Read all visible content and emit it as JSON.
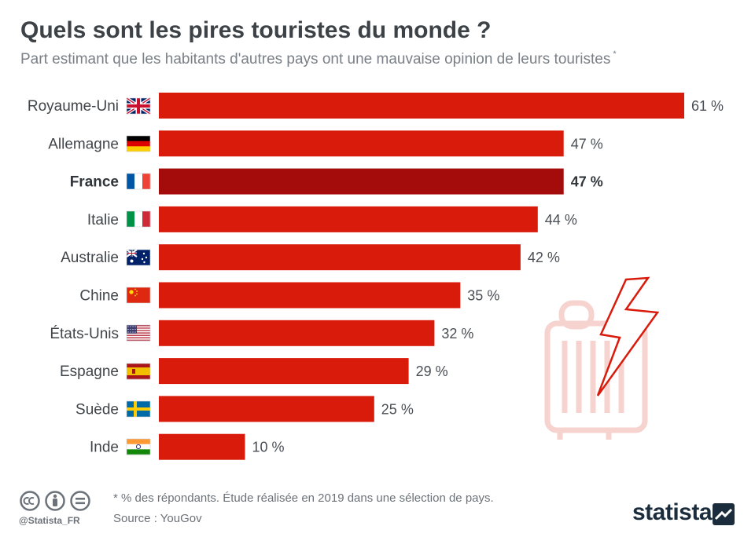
{
  "title": "Quels sont les pires touristes du monde ?",
  "subtitle": "Part estimant que les habitants d'autres pays ont une mauvaise opinion de leurs touristes",
  "subtitle_mark": "*",
  "footer": {
    "note": "* % des répondants. Étude réalisée en 2019 dans une sélection de pays.",
    "source": "Source : YouGov",
    "handle": "@Statista_FR",
    "brand": "statista"
  },
  "colors": {
    "bar": "#d91b0c",
    "bar_highlight": "#a40b0b",
    "decoration": "#f6d3cf",
    "lightning": "#d91b0c"
  },
  "icons": [
    "cc-icon",
    "attribution-icon",
    "no-derivatives-icon",
    "statista-logo-mark",
    "suitcase-icon",
    "lightning-icon"
  ],
  "chart_data": {
    "type": "bar",
    "orientation": "horizontal",
    "categories": [
      "Royaume-Uni",
      "Allemagne",
      "France",
      "Italie",
      "Australie",
      "Chine",
      "États-Unis",
      "Espagne",
      "Suède",
      "Inde"
    ],
    "flags": [
      "uk-flag-icon",
      "germany-flag-icon",
      "france-flag-icon",
      "italy-flag-icon",
      "australia-flag-icon",
      "china-flag-icon",
      "usa-flag-icon",
      "spain-flag-icon",
      "sweden-flag-icon",
      "india-flag-icon"
    ],
    "values": [
      61,
      47,
      47,
      44,
      42,
      35,
      32,
      29,
      25,
      10
    ],
    "value_labels": [
      "61 %",
      "47 %",
      "47 %",
      "44 %",
      "42 %",
      "35 %",
      "32 %",
      "29 %",
      "25 %",
      "10 %"
    ],
    "highlight": "France",
    "unit": "%",
    "xlim": [
      0,
      61
    ],
    "grid": false,
    "legend": "none"
  }
}
